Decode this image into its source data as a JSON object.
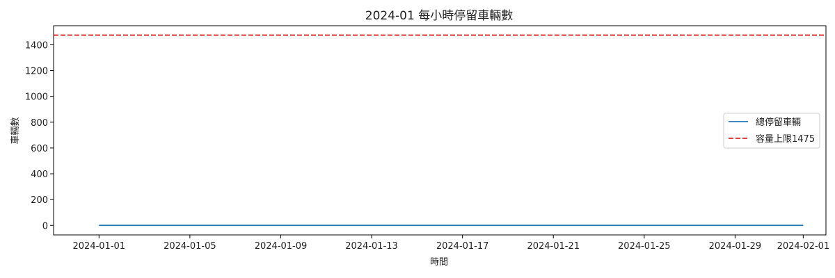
{
  "chart_data": {
    "type": "line",
    "title": "2024-01 每小時停留車輛數",
    "xlabel": "時間",
    "ylabel": "車輛數",
    "x_ticks": [
      "2024-01-01",
      "2024-01-05",
      "2024-01-09",
      "2024-01-13",
      "2024-01-17",
      "2024-01-21",
      "2024-01-25",
      "2024-01-29",
      "2024-02-01"
    ],
    "y_ticks": [
      "0",
      "200",
      "400",
      "600",
      "800",
      "1000",
      "1200",
      "1400"
    ],
    "xlim": [
      "2023-12-30",
      "2024-02-02"
    ],
    "ylim": [
      -74,
      1548
    ],
    "grid": false,
    "legend_position": "center-right",
    "series": [
      {
        "name": "總停留車輛",
        "color": "#1f77b4",
        "style": "solid",
        "x": [
          "2024-01-01",
          "2024-02-01"
        ],
        "y": [
          0,
          0
        ]
      }
    ],
    "reference_lines": [
      {
        "name": "容量上限1475",
        "value": 1475,
        "color": "#d62728",
        "style": "dashed"
      }
    ]
  }
}
